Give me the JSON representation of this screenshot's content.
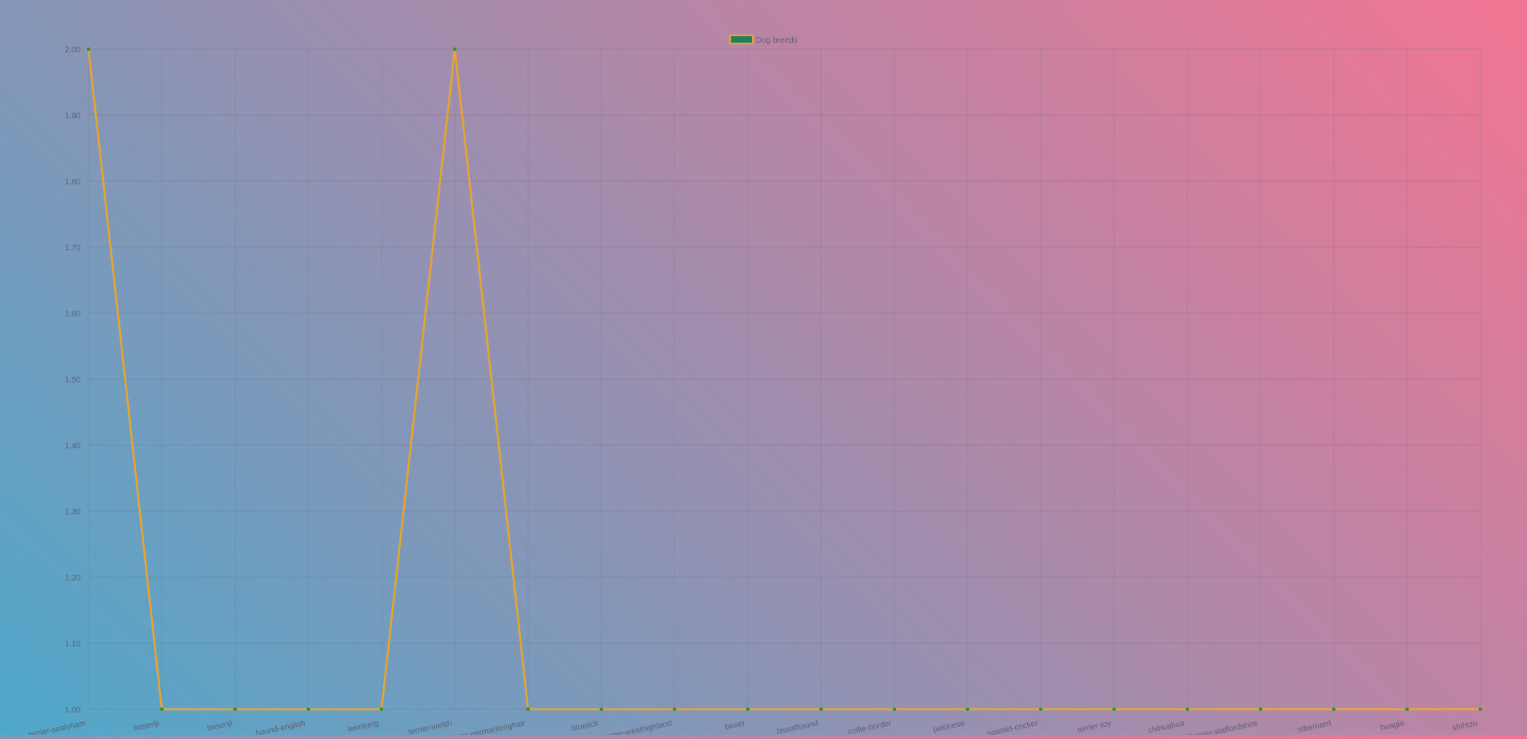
{
  "chart_data": {
    "type": "line",
    "legend": {
      "label": "Dog breeds",
      "position": "top-center"
    },
    "colors": {
      "line": "#e8a52f",
      "point": "#2d8a55",
      "legend_fill": "#1f7f5c",
      "legend_border": "#e8a52f",
      "grid": "#7a7a8a",
      "tick_text": "#5f5f70"
    },
    "categories": [
      "terrier-sealyham",
      "basenji",
      "basenji",
      "hound-english",
      "leonberg",
      "terrier-welsh",
      "pointer-germanlonghair",
      "bluetick",
      "terrier-westhighland",
      "boxer",
      "bloodhound",
      "collie-border",
      "pekinese",
      "spaniel-cocker",
      "terrier-toy",
      "chihuahua",
      "bullterrier-staffordshire",
      "stbernard",
      "beagle",
      "shihtzu"
    ],
    "series": [
      {
        "name": "Dog breeds",
        "values": [
          2,
          1,
          1,
          1,
          1,
          2,
          1,
          1,
          1,
          1,
          1,
          1,
          1,
          1,
          1,
          1,
          1,
          1,
          1,
          1
        ]
      }
    ],
    "y_ticks": [
      "2.00",
      "1.90",
      "1.80",
      "1.70",
      "1.60",
      "1.50",
      "1.40",
      "1.30",
      "1.20",
      "1.10",
      "1.00"
    ],
    "ylim": [
      1,
      2
    ],
    "grid": true
  }
}
